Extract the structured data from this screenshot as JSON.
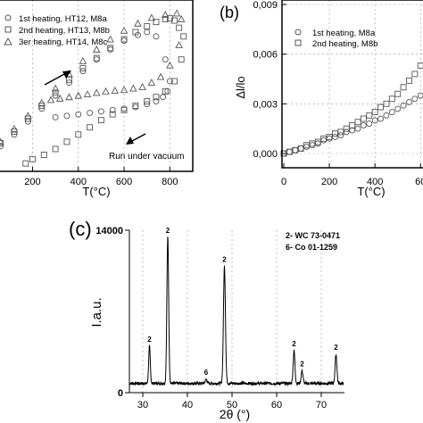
{
  "chart_data": [
    {
      "type": "scatter",
      "panel": "a",
      "xlabel": "T(°C)",
      "xlim": [
        50,
        900
      ],
      "xticks": [
        "200",
        "400",
        "600",
        "800"
      ],
      "legend_position": "top-left",
      "series": [
        {
          "name": "1st heating, HT12, M8a",
          "marker": "circle",
          "x": [
            60,
            120,
            180,
            240,
            300,
            360,
            420,
            480,
            540,
            600,
            660,
            700,
            740,
            780,
            800,
            790,
            770,
            740,
            700,
            650,
            600,
            550,
            500,
            450,
            400,
            350,
            300
          ],
          "y": [
            0.1,
            0.18,
            0.27,
            0.36,
            0.45,
            0.54,
            0.62,
            0.7,
            0.77,
            0.83,
            0.87,
            0.89,
            0.86,
            0.7,
            0.55,
            0.48,
            0.44,
            0.41,
            0.39,
            0.37,
            0.36,
            0.35,
            0.34,
            0.33,
            0.32,
            0.31,
            0.3
          ]
        },
        {
          "name": "2nd heating, HT13, M8b",
          "marker": "square",
          "x": [
            60,
            120,
            180,
            240,
            300,
            360,
            420,
            480,
            540,
            600,
            650,
            700,
            740,
            780,
            800,
            820,
            840,
            860,
            850,
            820,
            780,
            740,
            700,
            650,
            600,
            550,
            500,
            450,
            400,
            350,
            300,
            250,
            200,
            170
          ],
          "y": [
            0.12,
            0.2,
            0.29,
            0.38,
            0.47,
            0.56,
            0.64,
            0.71,
            0.78,
            0.84,
            0.89,
            0.93,
            0.96,
            0.98,
            0.985,
            0.97,
            0.92,
            0.86,
            0.7,
            0.55,
            0.48,
            0.44,
            0.41,
            0.38,
            0.35,
            0.32,
            0.28,
            0.23,
            0.18,
            0.13,
            0.08,
            0.04,
            0.01,
            -0.02
          ]
        },
        {
          "name": "3er heating, HT14, M8c",
          "marker": "triangle",
          "x": [
            60,
            120,
            180,
            240,
            300,
            360,
            420,
            480,
            540,
            600,
            660,
            720,
            780,
            830,
            850,
            840,
            800,
            760,
            720,
            680,
            640,
            600,
            560,
            520,
            480,
            440,
            400,
            360,
            320,
            280
          ],
          "y": [
            0.13,
            0.22,
            0.31,
            0.4,
            0.5,
            0.6,
            0.69,
            0.77,
            0.84,
            0.9,
            0.95,
            0.99,
            1.01,
            1.02,
            0.98,
            0.8,
            0.66,
            0.58,
            0.54,
            0.51,
            0.5,
            0.49,
            0.485,
            0.48,
            0.47,
            0.46,
            0.45,
            0.44,
            0.43,
            0.42
          ]
        }
      ],
      "annotations": [
        "Run under vacuum"
      ]
    },
    {
      "type": "scatter",
      "panel": "b",
      "xlabel": "T(°C)",
      "ylabel": "Δl/lo",
      "xlim": [
        0,
        650
      ],
      "ylim": [
        -0.0015,
        0.009
      ],
      "xticks": [
        "0",
        "200",
        "400",
        "60"
      ],
      "yticks": [
        "0,000",
        "0,003",
        "0,006",
        "0,009"
      ],
      "legend_position": "top-left",
      "series": [
        {
          "name": "1st heating, M8a",
          "marker": "circle",
          "x": [
            0,
            25,
            50,
            75,
            100,
            125,
            150,
            175,
            200,
            225,
            250,
            275,
            300,
            325,
            350,
            375,
            400,
            425,
            450,
            475,
            500,
            525,
            550,
            575,
            600,
            625,
            650
          ],
          "y": [
            0.0,
            0.0001,
            0.0002,
            0.0003,
            0.0004,
            0.0005,
            0.0006,
            0.0008,
            0.0009,
            0.001,
            0.0011,
            0.0013,
            0.0014,
            0.0015,
            0.0017,
            0.0018,
            0.002,
            0.0021,
            0.0023,
            0.0025,
            0.0027,
            0.0029,
            0.0031,
            0.0033,
            0.0035,
            0.0037,
            0.0039
          ]
        },
        {
          "name": "2nd heating, M8b",
          "marker": "square",
          "x": [
            0,
            25,
            50,
            75,
            100,
            125,
            150,
            175,
            200,
            225,
            250,
            275,
            300,
            325,
            350,
            375,
            400,
            425,
            450,
            475,
            500,
            525,
            550,
            575,
            600,
            625,
            650
          ],
          "y": [
            0.0,
            0.0001,
            0.0002,
            0.0003,
            0.0005,
            0.0006,
            0.0007,
            0.0009,
            0.001,
            0.0012,
            0.0013,
            0.0015,
            0.0017,
            0.0019,
            0.0021,
            0.0023,
            0.0025,
            0.0028,
            0.003,
            0.0033,
            0.0036,
            0.004,
            0.0044,
            0.0048,
            0.0053,
            0.0058,
            0.0064
          ]
        }
      ]
    },
    {
      "type": "line",
      "panel": "c",
      "xlabel": "2θ (°)",
      "ylabel": "I.a.u.",
      "xlim": [
        27,
        75
      ],
      "ylim": [
        0,
        14000
      ],
      "xticks": [
        "30",
        "40",
        "50",
        "60",
        "70"
      ],
      "yticks": [
        "0",
        "14000"
      ],
      "legend": [
        "2- WC 73-0471",
        "6- Co 01-1259"
      ],
      "legend_position": "top-right",
      "baseline": 800,
      "peaks": [
        {
          "x": 31.5,
          "y": 4000,
          "w": 0.18,
          "label": "2"
        },
        {
          "x": 35.6,
          "y": 13400,
          "w": 0.2,
          "label": "2"
        },
        {
          "x": 44.2,
          "y": 1150,
          "w": 0.2,
          "label": "6"
        },
        {
          "x": 48.3,
          "y": 10900,
          "w": 0.22,
          "label": "2"
        },
        {
          "x": 63.9,
          "y": 3600,
          "w": 0.2,
          "label": "2"
        },
        {
          "x": 65.7,
          "y": 1900,
          "w": 0.2,
          "label": "2"
        },
        {
          "x": 73.3,
          "y": 3300,
          "w": 0.2,
          "label": "2"
        }
      ]
    }
  ],
  "panel_labels": {
    "b": "(b)",
    "c": "(c)"
  },
  "colors": {
    "marker": "#555555",
    "grid": "#999999",
    "line": "#000000"
  }
}
